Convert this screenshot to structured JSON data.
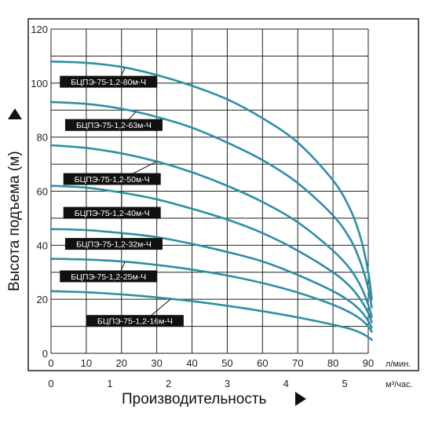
{
  "chart_data": {
    "type": "line",
    "xlabel": "Производительность",
    "ylabel": "Высота подъема (м)",
    "x_unit_primary": "л/мин.",
    "x_unit_secondary": "м³/час.",
    "xlim": [
      0,
      90
    ],
    "ylim": [
      0,
      120
    ],
    "x_ticks": [
      "0",
      "10",
      "20",
      "30",
      "40",
      "50",
      "60",
      "70",
      "80",
      "90"
    ],
    "x2_ticks": [
      "0",
      "1",
      "2",
      "3",
      "4",
      "5"
    ],
    "x2_factor": 16.6667,
    "y_ticks": [
      "0",
      "20",
      "40",
      "60",
      "80",
      "100",
      "120"
    ],
    "grid": true,
    "line_color": "#2e8fa5",
    "series": [
      {
        "name": "БЦПЭ-75-1,2-80м-Ч",
        "x": [
          0,
          10,
          20,
          30,
          40,
          50,
          60,
          70,
          80,
          85,
          88,
          90,
          91
        ],
        "y": [
          108,
          107.5,
          106,
          103,
          99,
          94,
          87,
          78,
          64,
          53,
          42,
          30,
          20
        ]
      },
      {
        "name": "БЦПЭ-75-1,2-63м-Ч",
        "x": [
          0,
          10,
          20,
          30,
          40,
          50,
          60,
          70,
          80,
          85,
          88,
          90,
          91
        ],
        "y": [
          93,
          92.3,
          90.5,
          87.5,
          83.5,
          78,
          71.5,
          63,
          51,
          42,
          33,
          24,
          17
        ]
      },
      {
        "name": "БЦПЭ-75-1,2-50м-Ч",
        "x": [
          0,
          10,
          20,
          30,
          40,
          50,
          60,
          70,
          80,
          85,
          88,
          90,
          91
        ],
        "y": [
          77,
          76,
          74,
          71,
          67,
          62,
          56,
          48.5,
          38,
          31,
          24.5,
          18,
          13.5
        ]
      },
      {
        "name": "БЦПЭ-75-1,2-40м-Ч",
        "x": [
          0,
          10,
          20,
          30,
          40,
          50,
          60,
          70,
          80,
          85,
          88,
          90,
          91
        ],
        "y": [
          62,
          61.3,
          59.5,
          57,
          53.5,
          49.5,
          44.5,
          38,
          30,
          24.5,
          19.5,
          15,
          11.5
        ]
      },
      {
        "name": "БЦПЭ-75-1,2-32м-Ч",
        "x": [
          0,
          10,
          20,
          30,
          40,
          50,
          60,
          70,
          80,
          85,
          88,
          90,
          91
        ],
        "y": [
          46,
          45.6,
          44.5,
          43,
          40.5,
          37.5,
          34,
          29,
          23,
          19,
          15.5,
          12,
          9.5
        ]
      },
      {
        "name": "БЦПЭ-75-1,2-25м-Ч",
        "x": [
          0,
          10,
          20,
          30,
          40,
          50,
          60,
          70,
          80,
          85,
          88,
          90,
          91
        ],
        "y": [
          35,
          34.7,
          34,
          32.7,
          31,
          28.8,
          26,
          22.5,
          18,
          15,
          12.5,
          10,
          8
        ]
      },
      {
        "name": "БЦПЭ-75-1,2-16м-Ч",
        "x": [
          0,
          10,
          20,
          30,
          40,
          50,
          60,
          70,
          80,
          85,
          88,
          90,
          91
        ],
        "y": [
          23,
          22.6,
          21.8,
          20.7,
          19.3,
          17.6,
          15.6,
          13.3,
          10.6,
          9,
          7.5,
          6,
          5
        ]
      }
    ]
  }
}
